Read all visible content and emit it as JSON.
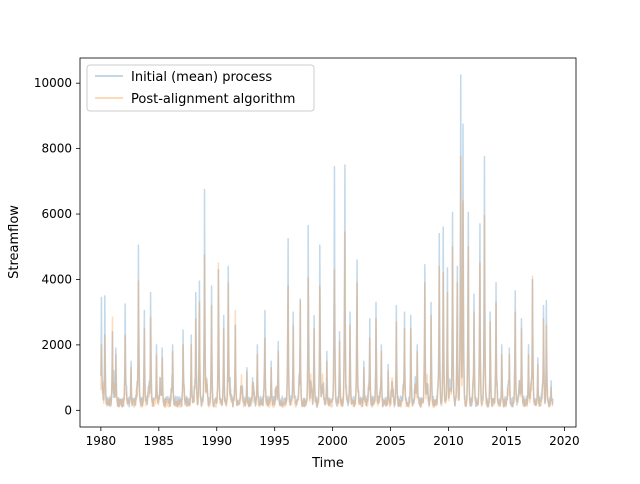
{
  "chart_data": {
    "type": "line",
    "xlabel": "Time",
    "ylabel": "Streamflow",
    "xlim": [
      1978.2,
      2021.0
    ],
    "ylim": [
      -510,
      10770
    ],
    "x_ticks": [
      1980,
      1985,
      1990,
      1995,
      2000,
      2005,
      2010,
      2015,
      2020
    ],
    "y_ticks": [
      0,
      2000,
      4000,
      6000,
      8000,
      10000
    ],
    "x_tick_labels": [
      "1980",
      "1985",
      "1990",
      "1995",
      "2000",
      "2005",
      "2010",
      "2015",
      "2020"
    ],
    "y_tick_labels": [
      "0",
      "2000",
      "4000",
      "6000",
      "8000",
      "10000"
    ],
    "grid": false,
    "legend_position": "upper-left",
    "x_range": [
      1980.0,
      2019.0
    ],
    "series": [
      {
        "name": "Initial (mean) process",
        "color": "#1f77b4",
        "opacity": 0.28,
        "baseline": 300,
        "peaks": [
          [
            1980.05,
            3450
          ],
          [
            1980.35,
            3500
          ],
          [
            1981.0,
            2400
          ],
          [
            1981.3,
            1900
          ],
          [
            1982.1,
            3250
          ],
          [
            1982.6,
            1500
          ],
          [
            1983.25,
            5050
          ],
          [
            1983.75,
            3050
          ],
          [
            1984.3,
            3600
          ],
          [
            1984.8,
            2000
          ],
          [
            1985.3,
            1900
          ],
          [
            1986.2,
            2000
          ],
          [
            1987.1,
            2450
          ],
          [
            1987.8,
            2300
          ],
          [
            1988.2,
            3600
          ],
          [
            1988.5,
            3950
          ],
          [
            1988.95,
            6750
          ],
          [
            1989.55,
            3800
          ],
          [
            1990.15,
            4300
          ],
          [
            1990.6,
            2900
          ],
          [
            1991.0,
            4400
          ],
          [
            1991.6,
            2600
          ],
          [
            1992.6,
            1300
          ],
          [
            1993.5,
            2000
          ],
          [
            1994.15,
            3050
          ],
          [
            1994.7,
            1500
          ],
          [
            1995.3,
            2100
          ],
          [
            1996.15,
            5250
          ],
          [
            1996.6,
            3000
          ],
          [
            1997.2,
            3400
          ],
          [
            1997.9,
            5650
          ],
          [
            1998.4,
            2900
          ],
          [
            1998.9,
            5050
          ],
          [
            1999.5,
            1800
          ],
          [
            2000.15,
            7450
          ],
          [
            2000.6,
            2400
          ],
          [
            2001.05,
            7500
          ],
          [
            2001.5,
            3000
          ],
          [
            2002.1,
            4600
          ],
          [
            2002.7,
            1500
          ],
          [
            2003.2,
            2800
          ],
          [
            2003.75,
            3300
          ],
          [
            2004.2,
            2000
          ],
          [
            2004.8,
            1400
          ],
          [
            2005.5,
            3200
          ],
          [
            2006.2,
            3000
          ],
          [
            2006.75,
            2900
          ],
          [
            2007.3,
            2000
          ],
          [
            2007.95,
            4450
          ],
          [
            2008.5,
            3300
          ],
          [
            2009.2,
            5400
          ],
          [
            2009.55,
            5600
          ],
          [
            2009.9,
            4350
          ],
          [
            2010.35,
            6050
          ],
          [
            2010.75,
            4400
          ],
          [
            2011.05,
            10250
          ],
          [
            2011.25,
            8750
          ],
          [
            2011.7,
            6050
          ],
          [
            2012.2,
            3550
          ],
          [
            2012.7,
            5700
          ],
          [
            2013.1,
            7750
          ],
          [
            2013.6,
            3000
          ],
          [
            2014.1,
            3900
          ],
          [
            2014.6,
            2000
          ],
          [
            2015.25,
            1900
          ],
          [
            2015.75,
            3650
          ],
          [
            2016.3,
            2800
          ],
          [
            2016.9,
            2000
          ],
          [
            2017.25,
            4000
          ],
          [
            2017.7,
            1600
          ],
          [
            2018.2,
            3200
          ],
          [
            2018.45,
            3350
          ],
          [
            2018.85,
            900
          ]
        ]
      },
      {
        "name": "Post-alignment algorithm",
        "color": "#ff7f0e",
        "opacity": 0.28,
        "baseline": 250,
        "peaks": [
          [
            1980.05,
            2000
          ],
          [
            1980.35,
            2300
          ],
          [
            1981.0,
            2850
          ],
          [
            1981.3,
            1700
          ],
          [
            1982.1,
            2300
          ],
          [
            1982.6,
            1300
          ],
          [
            1983.25,
            3950
          ],
          [
            1983.75,
            2500
          ],
          [
            1984.3,
            2850
          ],
          [
            1984.8,
            1700
          ],
          [
            1985.3,
            1600
          ],
          [
            1986.2,
            1800
          ],
          [
            1987.1,
            2000
          ],
          [
            1987.8,
            2000
          ],
          [
            1988.2,
            2800
          ],
          [
            1988.5,
            3300
          ],
          [
            1988.95,
            4750
          ],
          [
            1989.55,
            3200
          ],
          [
            1990.15,
            4500
          ],
          [
            1990.6,
            2500
          ],
          [
            1991.0,
            3900
          ],
          [
            1991.6,
            3050
          ],
          [
            1992.6,
            1200
          ],
          [
            1993.5,
            1700
          ],
          [
            1994.15,
            2200
          ],
          [
            1994.7,
            1300
          ],
          [
            1995.3,
            1800
          ],
          [
            1996.15,
            3800
          ],
          [
            1996.6,
            2600
          ],
          [
            1997.2,
            3350
          ],
          [
            1997.9,
            4050
          ],
          [
            1998.4,
            2500
          ],
          [
            1998.9,
            3800
          ],
          [
            1999.5,
            1500
          ],
          [
            2000.15,
            4300
          ],
          [
            2000.6,
            2100
          ],
          [
            2001.05,
            5450
          ],
          [
            2001.5,
            2600
          ],
          [
            2002.1,
            3900
          ],
          [
            2002.7,
            1300
          ],
          [
            2003.2,
            2200
          ],
          [
            2003.75,
            2800
          ],
          [
            2004.2,
            1800
          ],
          [
            2004.8,
            1200
          ],
          [
            2005.5,
            2700
          ],
          [
            2006.2,
            2500
          ],
          [
            2006.75,
            2500
          ],
          [
            2007.3,
            1800
          ],
          [
            2007.95,
            3900
          ],
          [
            2008.5,
            2900
          ],
          [
            2009.2,
            4400
          ],
          [
            2009.55,
            4200
          ],
          [
            2009.9,
            3600
          ],
          [
            2010.35,
            5000
          ],
          [
            2010.75,
            3900
          ],
          [
            2011.05,
            7750
          ],
          [
            2011.25,
            6400
          ],
          [
            2011.7,
            5000
          ],
          [
            2012.2,
            3000
          ],
          [
            2012.7,
            4500
          ],
          [
            2013.1,
            5950
          ],
          [
            2013.6,
            2700
          ],
          [
            2014.1,
            3300
          ],
          [
            2014.6,
            1700
          ],
          [
            2015.25,
            1700
          ],
          [
            2015.75,
            3000
          ],
          [
            2016.3,
            2500
          ],
          [
            2016.9,
            1700
          ],
          [
            2017.25,
            4100
          ],
          [
            2017.7,
            1400
          ],
          [
            2018.2,
            2800
          ],
          [
            2018.45,
            2600
          ],
          [
            2018.85,
            700
          ]
        ]
      }
    ]
  }
}
